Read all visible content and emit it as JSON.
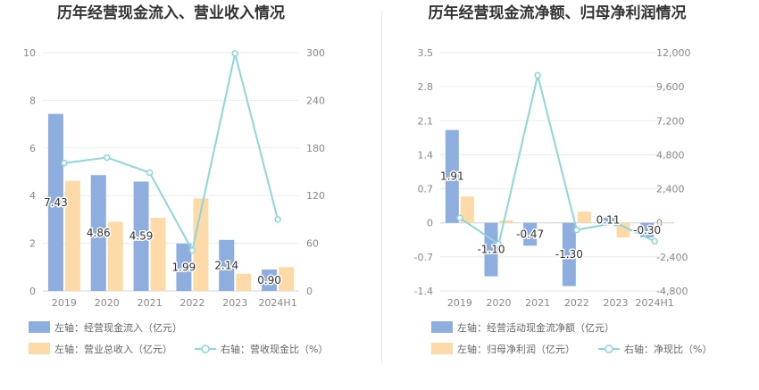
{
  "chart_data": [
    {
      "type": "bar",
      "title": "历年经营现金流入、营业收入情况",
      "categories": [
        "2019",
        "2020",
        "2021",
        "2022",
        "2023",
        "2024H1"
      ],
      "y_left": {
        "min": 0,
        "max": 10,
        "ticks": [
          "0",
          "2",
          "4",
          "6",
          "8",
          "10"
        ]
      },
      "y_right": {
        "min": 0,
        "max": 300,
        "ticks": [
          "0",
          "60",
          "120",
          "180",
          "240",
          "300"
        ]
      },
      "series": [
        {
          "name": "左轴：经营现金流入（亿元）",
          "kind": "bar",
          "axis": "left",
          "color": "#8eaedf",
          "values": [
            7.43,
            4.86,
            4.59,
            1.99,
            2.14,
            0.9
          ],
          "labels": [
            "7.43",
            "4.86",
            "4.59",
            "1.99",
            "2.14",
            "0.90"
          ]
        },
        {
          "name": "左轴：营业总收入（亿元）",
          "kind": "bar",
          "axis": "left",
          "color": "#fedaa8",
          "values": [
            4.62,
            2.9,
            3.07,
            3.88,
            0.72,
            1.0
          ]
        },
        {
          "name": "右轴：营收现金比（%）",
          "kind": "line",
          "axis": "right",
          "color": "#8ed6da",
          "values": [
            161,
            168,
            149,
            51,
            299,
            90
          ]
        }
      ],
      "legend": "bottom",
      "grid": true
    },
    {
      "type": "bar",
      "title": "历年经营现金流净额、归母净利润情况",
      "categories": [
        "2019",
        "2020",
        "2021",
        "2022",
        "2023",
        "2024H1"
      ],
      "y_left": {
        "min": -1.4,
        "max": 3.5,
        "ticks": [
          "-1.4",
          "-0.7",
          "0",
          "0.7",
          "1.4",
          "2.1",
          "2.8",
          "3.5"
        ]
      },
      "y_right": {
        "min": -4800,
        "max": 12000,
        "ticks": [
          "-4,800",
          "-2,400",
          "0",
          "2,400",
          "4,800",
          "7,200",
          "9,600",
          "12,000"
        ]
      },
      "series": [
        {
          "name": "左轴：经营活动现金流净额（亿元）",
          "kind": "bar",
          "axis": "left",
          "color": "#8eaedf",
          "values": [
            1.91,
            -1.1,
            -0.47,
            -1.3,
            0.11,
            -0.3
          ],
          "labels": [
            "1.91",
            "-1.10",
            "-0.47",
            "-1.30",
            "0.11",
            "-0.30"
          ]
        },
        {
          "name": "左轴：归母净利润（亿元）",
          "kind": "bar",
          "axis": "left",
          "color": "#fedaa8",
          "values": [
            0.54,
            0.05,
            0.0,
            0.23,
            -0.3,
            -0.01
          ]
        },
        {
          "name": "右轴：净现比（%）",
          "kind": "line",
          "axis": "right",
          "color": "#8ed6da",
          "values": [
            350,
            -1500,
            10400,
            -500,
            0,
            -1300
          ]
        }
      ],
      "legend": "bottom",
      "grid": true
    }
  ]
}
